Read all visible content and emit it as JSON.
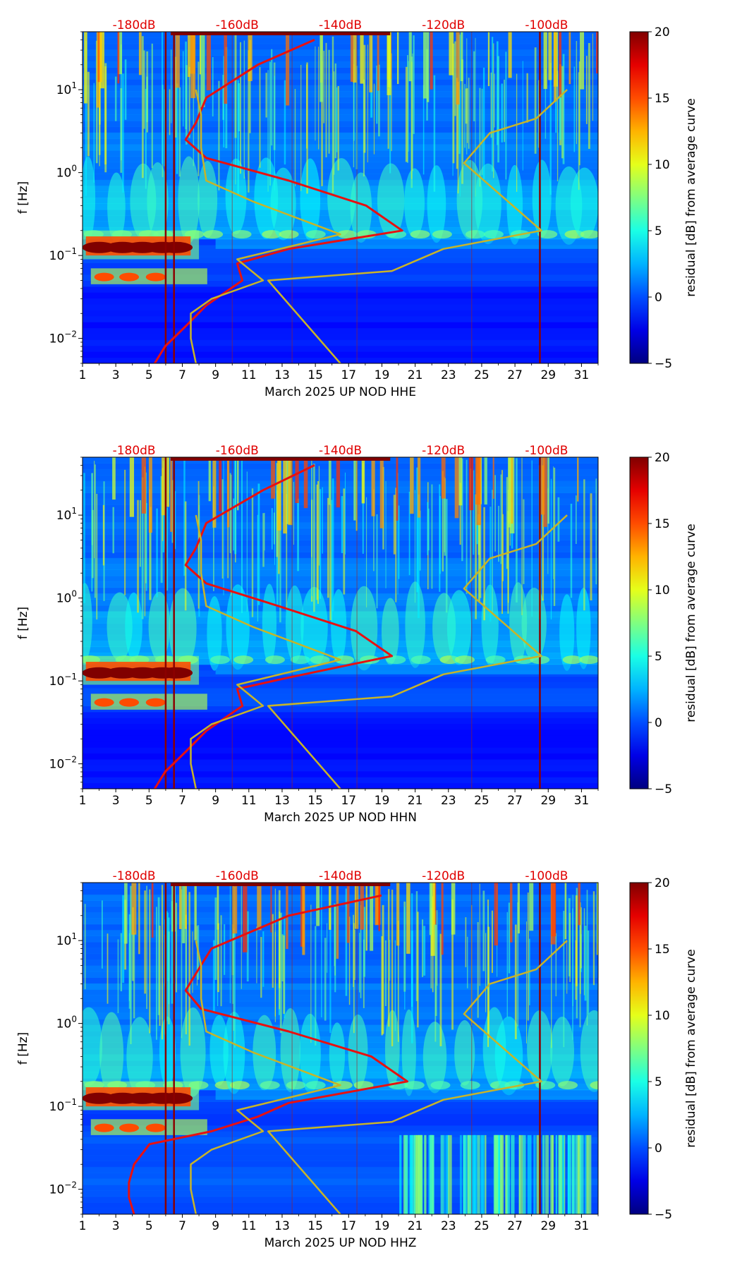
{
  "chart_data": [
    {
      "type": "heatmap",
      "title": "",
      "xlabel": "March 2025 UP NOD  HHE",
      "ylabel": "f [Hz]",
      "x_ticks": [
        "1",
        "3",
        "5",
        "7",
        "9",
        "11",
        "13",
        "15",
        "17",
        "19",
        "21",
        "23",
        "25",
        "27",
        "29",
        "31"
      ],
      "x_range": [
        1,
        32
      ],
      "y_scale": "log",
      "y_range": [
        0.005,
        50
      ],
      "y_tick_values": [
        0.01,
        0.1,
        1,
        10
      ],
      "top_axis_labels": [
        "-180dB",
        "-160dB",
        "-140dB",
        "-120dB",
        "-100dB"
      ],
      "top_axis_values": [
        -180,
        -160,
        -140,
        -120,
        -100
      ],
      "colorbar": {
        "label": "residual [dB] from average curve",
        "range": [
          -5,
          20
        ],
        "ticks": [
          "20",
          "15",
          "10",
          "5",
          "0",
          "−5"
        ]
      },
      "overlays": [
        {
          "kind": "average-psd-curve",
          "color": "#e81010",
          "points_db_hz": [
            [
              -176,
              0.005
            ],
            [
              -174,
              0.008
            ],
            [
              -170,
              0.014
            ],
            [
              -166,
              0.025
            ],
            [
              -159,
              0.05
            ],
            [
              -160,
              0.08
            ],
            [
              -150,
              0.12
            ],
            [
              -128,
              0.2
            ],
            [
              -135,
              0.4
            ],
            [
              -150,
              0.8
            ],
            [
              -166,
              1.5
            ],
            [
              -170,
              2.5
            ],
            [
              -168,
              4
            ],
            [
              -166,
              8
            ],
            [
              -156,
              20
            ],
            [
              -145,
              40
            ]
          ]
        },
        {
          "kind": "noise-model-low",
          "color": "#c8b428",
          "points_db_hz": [
            [
              -168,
              0.005
            ],
            [
              -169,
              0.01
            ],
            [
              -169,
              0.02
            ],
            [
              -165,
              0.03
            ],
            [
              -155,
              0.05
            ],
            [
              -160,
              0.09
            ],
            [
              -140,
              0.18
            ],
            [
              -157,
              0.45
            ],
            [
              -166,
              0.8
            ],
            [
              -167,
              2
            ],
            [
              -167,
              5
            ],
            [
              -168,
              10
            ]
          ]
        },
        {
          "kind": "noise-model-high",
          "color": "#c8b428",
          "points_db_hz": [
            [
              -140,
              0.005
            ],
            [
              -154,
              0.05
            ],
            [
              -130,
              0.065
            ],
            [
              -120,
              0.12
            ],
            [
              -101,
              0.2
            ],
            [
              -116,
              1.3
            ],
            [
              -111,
              3
            ],
            [
              -102,
              4.5
            ],
            [
              -96,
              10
            ]
          ]
        }
      ]
    },
    {
      "type": "heatmap",
      "title": "",
      "xlabel": "March 2025 UP NOD  HHN",
      "ylabel": "f [Hz]",
      "x_ticks": [
        "1",
        "3",
        "5",
        "7",
        "9",
        "11",
        "13",
        "15",
        "17",
        "19",
        "21",
        "23",
        "25",
        "27",
        "29",
        "31"
      ],
      "x_range": [
        1,
        32
      ],
      "y_scale": "log",
      "y_range": [
        0.005,
        50
      ],
      "y_tick_values": [
        0.01,
        0.1,
        1,
        10
      ],
      "top_axis_labels": [
        "-180dB",
        "-160dB",
        "-140dB",
        "-120dB",
        "-100dB"
      ],
      "top_axis_values": [
        -180,
        -160,
        -140,
        -120,
        -100
      ],
      "colorbar": {
        "label": "residual [dB] from average curve",
        "range": [
          -5,
          20
        ],
        "ticks": [
          "20",
          "15",
          "10",
          "5",
          "0",
          "−5"
        ]
      },
      "overlays": [
        {
          "kind": "average-psd-curve",
          "color": "#e81010",
          "points_db_hz": [
            [
              -176,
              0.005
            ],
            [
              -174,
              0.008
            ],
            [
              -170,
              0.014
            ],
            [
              -166,
              0.025
            ],
            [
              -159,
              0.05
            ],
            [
              -160,
              0.08
            ],
            [
              -150,
              0.11
            ],
            [
              -130,
              0.2
            ],
            [
              -137,
              0.4
            ],
            [
              -152,
              0.8
            ],
            [
              -166,
              1.5
            ],
            [
              -170,
              2.5
            ],
            [
              -168,
              4
            ],
            [
              -166,
              8
            ],
            [
              -155,
              20
            ],
            [
              -145,
              40
            ]
          ]
        },
        {
          "kind": "noise-model-low",
          "color": "#c8b428",
          "points_db_hz": [
            [
              -168,
              0.005
            ],
            [
              -169,
              0.01
            ],
            [
              -169,
              0.02
            ],
            [
              -165,
              0.03
            ],
            [
              -155,
              0.05
            ],
            [
              -160,
              0.09
            ],
            [
              -140,
              0.18
            ],
            [
              -157,
              0.45
            ],
            [
              -166,
              0.8
            ],
            [
              -167,
              2
            ],
            [
              -167,
              5
            ],
            [
              -168,
              10
            ]
          ]
        },
        {
          "kind": "noise-model-high",
          "color": "#c8b428",
          "points_db_hz": [
            [
              -140,
              0.005
            ],
            [
              -154,
              0.05
            ],
            [
              -130,
              0.065
            ],
            [
              -120,
              0.12
            ],
            [
              -101,
              0.2
            ],
            [
              -116,
              1.3
            ],
            [
              -111,
              3
            ],
            [
              -102,
              4.5
            ],
            [
              -96,
              10
            ]
          ]
        }
      ]
    },
    {
      "type": "heatmap",
      "title": "",
      "xlabel": "March 2025 UP NOD  HHZ",
      "ylabel": "f [Hz]",
      "x_ticks": [
        "1",
        "3",
        "5",
        "7",
        "9",
        "11",
        "13",
        "15",
        "17",
        "19",
        "21",
        "23",
        "25",
        "27",
        "29",
        "31"
      ],
      "x_range": [
        1,
        32
      ],
      "y_scale": "log",
      "y_range": [
        0.005,
        50
      ],
      "y_tick_values": [
        0.01,
        0.1,
        1,
        10
      ],
      "top_axis_labels": [
        "-180dB",
        "-160dB",
        "-140dB",
        "-120dB",
        "-100dB"
      ],
      "top_axis_values": [
        -180,
        -160,
        -140,
        -120,
        -100
      ],
      "colorbar": {
        "label": "residual [dB] from average curve",
        "range": [
          -5,
          20
        ],
        "ticks": [
          "20",
          "15",
          "10",
          "5",
          "0",
          "−5"
        ]
      },
      "overlays": [
        {
          "kind": "average-psd-curve",
          "color": "#e81010",
          "points_db_hz": [
            [
              -180,
              0.005
            ],
            [
              -181,
              0.008
            ],
            [
              -181,
              0.012
            ],
            [
              -180,
              0.02
            ],
            [
              -177,
              0.035
            ],
            [
              -165,
              0.05
            ],
            [
              -156,
              0.075
            ],
            [
              -150,
              0.11
            ],
            [
              -127,
              0.2
            ],
            [
              -134,
              0.4
            ],
            [
              -150,
              0.8
            ],
            [
              -167,
              1.5
            ],
            [
              -170,
              2.5
            ],
            [
              -168,
              4
            ],
            [
              -165,
              8
            ],
            [
              -150,
              20
            ],
            [
              -132,
              35
            ]
          ]
        },
        {
          "kind": "noise-model-low",
          "color": "#c8b428",
          "points_db_hz": [
            [
              -168,
              0.005
            ],
            [
              -169,
              0.01
            ],
            [
              -169,
              0.02
            ],
            [
              -165,
              0.03
            ],
            [
              -155,
              0.05
            ],
            [
              -160,
              0.09
            ],
            [
              -140,
              0.18
            ],
            [
              -157,
              0.45
            ],
            [
              -166,
              0.8
            ],
            [
              -167,
              2
            ],
            [
              -167,
              5
            ],
            [
              -168,
              10
            ]
          ]
        },
        {
          "kind": "noise-model-high",
          "color": "#c8b428",
          "points_db_hz": [
            [
              -140,
              0.005
            ],
            [
              -154,
              0.05
            ],
            [
              -130,
              0.065
            ],
            [
              -120,
              0.12
            ],
            [
              -101,
              0.2
            ],
            [
              -116,
              1.3
            ],
            [
              -111,
              3
            ],
            [
              -102,
              4.5
            ],
            [
              -96,
              10
            ]
          ]
        }
      ]
    }
  ]
}
